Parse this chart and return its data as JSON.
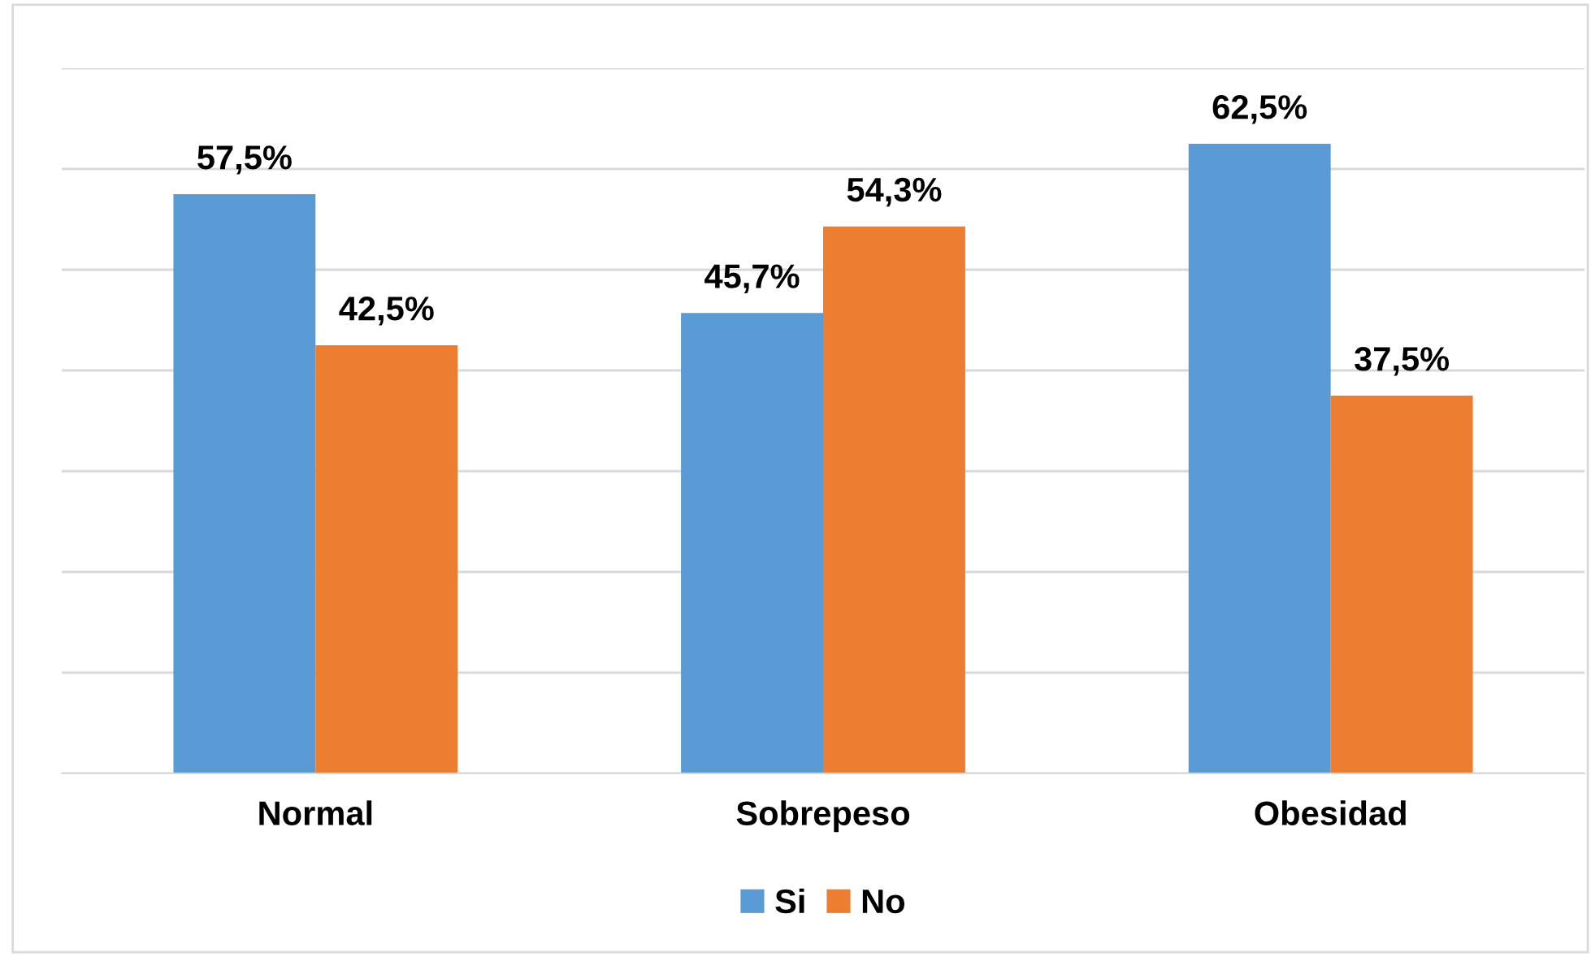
{
  "chart_data": {
    "type": "bar",
    "categories": [
      "Normal",
      "Sobrepeso",
      "Obesidad"
    ],
    "series": [
      {
        "name": "Si",
        "color": "#5b9bd5",
        "values": [
          57.5,
          45.7,
          62.5
        ],
        "value_labels": [
          "57,5%",
          "45,7%",
          "62,5%"
        ]
      },
      {
        "name": "No",
        "color": "#ed7d31",
        "values": [
          42.5,
          54.3,
          37.5
        ],
        "value_labels": [
          "42,5%",
          "54,3%",
          "37,5%"
        ]
      }
    ],
    "ylim": [
      0,
      70
    ],
    "yticks": [
      {
        "value": 0,
        "label": null
      },
      {
        "value": 10,
        "label": null
      },
      {
        "value": 20,
        "label": null
      },
      {
        "value": 30,
        "label": null
      },
      {
        "value": 40,
        "label": null
      },
      {
        "value": 50,
        "label": null
      },
      {
        "value": 60,
        "label": null
      },
      {
        "value": 70,
        "label": null
      }
    ],
    "tick_labels": "x",
    "grid": "y",
    "legend": "bottom"
  }
}
